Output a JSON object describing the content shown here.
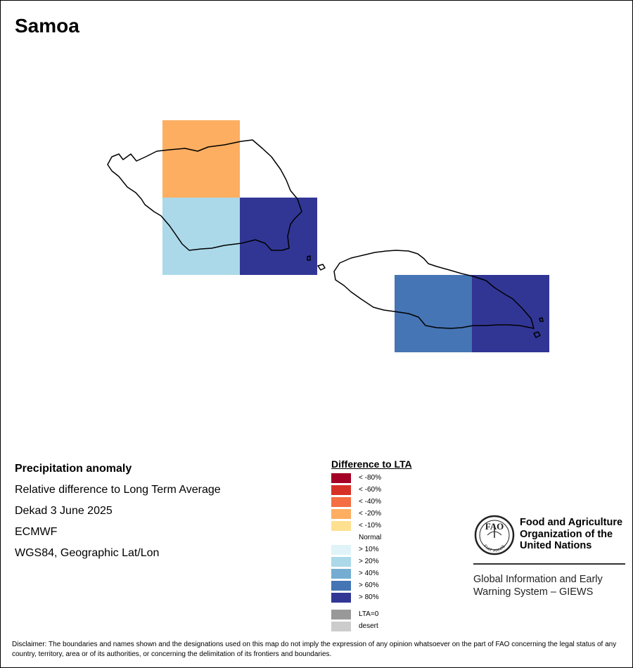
{
  "map": {
    "title": "Samoa",
    "grid_cells": [
      {
        "cell": "upolu-west-north",
        "class": "< -20%",
        "color": "#fdae61"
      },
      {
        "cell": "upolu-west-south",
        "class": "> 20%",
        "color": "#abd9e9"
      },
      {
        "cell": "upolu-central-south",
        "class": "> 80%",
        "color": "#313695"
      },
      {
        "cell": "savaii-west",
        "class": "> 60%",
        "color": "#4575b4"
      },
      {
        "cell": "savaii-east",
        "class": "> 80%",
        "color": "#313695"
      }
    ]
  },
  "info": {
    "heading": "Precipitation anomaly",
    "subtitle": "Relative difference to Long Term Average",
    "period": "Dekad 3 June 2025",
    "source": "ECMWF",
    "projection": "WGS84, Geographic Lat/Lon"
  },
  "legend": {
    "title": "Difference to LTA",
    "items": [
      {
        "label": "< -80%",
        "color": "#a50026"
      },
      {
        "label": "< -60%",
        "color": "#d73027"
      },
      {
        "label": "< -40%",
        "color": "#f46d43"
      },
      {
        "label": "< -20%",
        "color": "#fdae61"
      },
      {
        "label": "< -10%",
        "color": "#fee090"
      },
      {
        "label": "Normal",
        "color": "#ffffff"
      },
      {
        "label": "> 10%",
        "color": "#e0f3f8"
      },
      {
        "label": "> 20%",
        "color": "#abd9e9"
      },
      {
        "label": "> 40%",
        "color": "#74add1"
      },
      {
        "label": "> 60%",
        "color": "#4575b4"
      },
      {
        "label": "> 80%",
        "color": "#313695"
      }
    ],
    "extra": [
      {
        "label": "LTA=0",
        "color": "#999999"
      },
      {
        "label": "desert",
        "color": "#cccccc"
      }
    ]
  },
  "fao": {
    "emblem_text": "FAO",
    "emblem_motto": "FIAT PANIS",
    "name_lines": [
      "Food and Agriculture",
      "Organization of the",
      "United Nations"
    ],
    "giews_lines": [
      "Global Information and Early",
      "Warning System – GIEWS"
    ]
  },
  "disclaimer": "Disclaimer: The boundaries and names shown and the designations used on this map do not imply the expression of any opinion whatsoever on the part of FAO concerning the legal status of any country, territory, area or of its authorities, or concerning the delimitation of its frontiers and boundaries."
}
